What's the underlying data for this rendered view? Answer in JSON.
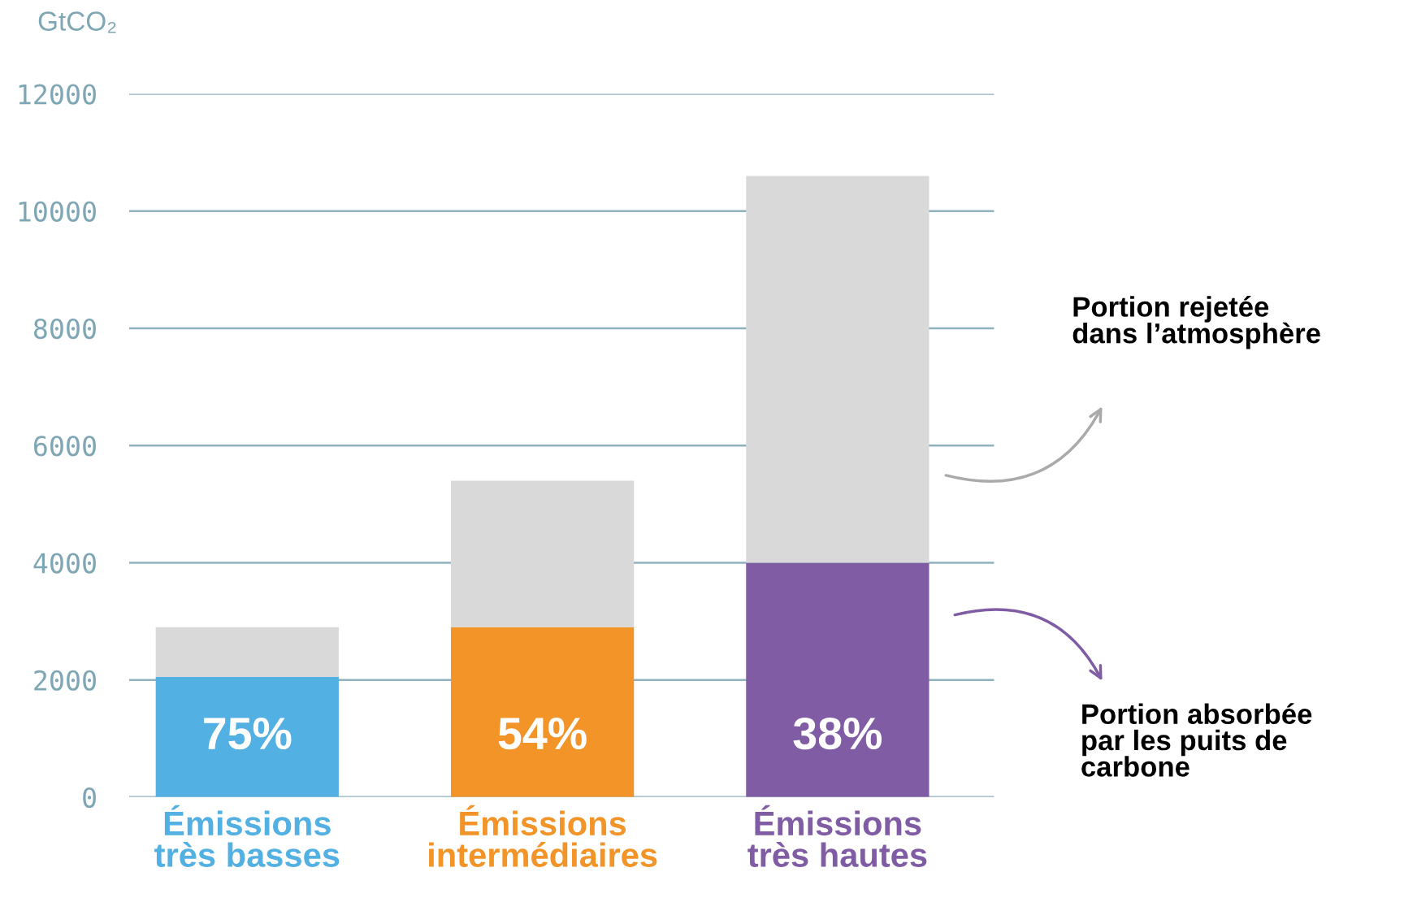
{
  "chart_data": {
    "type": "bar",
    "stacked": true,
    "ylabel": "GtCO₂",
    "categories": [
      "Émissions\ntrès basses",
      "Émissions\nintermédiaires",
      "Émissions\ntrès hautes"
    ],
    "series": [
      {
        "name": "Portion absorbée\npar les puits de\ncarbone",
        "colors": [
          "#52b0e3",
          "#f29427",
          "#7f5ca4"
        ],
        "values": [
          2050,
          2900,
          4000
        ]
      },
      {
        "name": "Portion rejetée\ndans l’atmosphère",
        "color": "#d9d9d9",
        "values": [
          850,
          2500,
          6600
        ]
      }
    ],
    "annotations": [
      "75%",
      "54%",
      "38%"
    ],
    "ylim": [
      0,
      12000
    ],
    "yticks": [
      0,
      2000,
      4000,
      6000,
      8000,
      10000,
      12000
    ],
    "grid": "y"
  }
}
